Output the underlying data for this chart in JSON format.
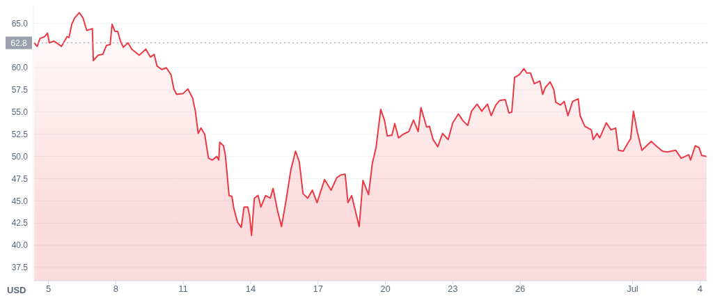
{
  "chart_data": {
    "type": "area",
    "ylabel": "USD",
    "x": [
      "--06-04T09:00",
      "--06-04T12:00",
      "--06-04T15:00",
      "--06-04T20:00",
      "--06-04T23:00",
      "--06-05T01:00",
      "--06-05T06:00",
      "--06-05T14:00",
      "--06-05T20:00",
      "--06-05T22:00",
      "--06-06T01:00",
      "--06-06T04:00",
      "--06-06T09:00",
      "--06-06T13:00",
      "--06-06T17:00",
      "--06-06T23:00",
      "--06-07T00:00",
      "--06-07T05:00",
      "--06-07T10:00",
      "--06-07T14:00",
      "--06-07T18:00",
      "--06-07T20:00",
      "--06-07T23:00",
      "--06-08T02:00",
      "--06-08T05:00",
      "--06-08T08:00",
      "--06-08T13:00",
      "--06-08T17:00",
      "--06-09T01:00",
      "--06-09T08:00",
      "--06-09T13:00",
      "--06-09T17:00",
      "--06-09T20:00",
      "--06-10T01:00",
      "--06-10T06:00",
      "--06-10T11:00",
      "--06-10T14:00",
      "--06-10T17:00",
      "--06-11T00:00",
      "--06-11T05:00",
      "--06-11T10:00",
      "--06-11T13:00",
      "--06-11T16:00",
      "--06-11T19:00",
      "--06-11T23:00",
      "--06-12T03:00",
      "--06-12T07:00",
      "--06-12T12:00",
      "--06-12T14:00",
      "--06-12T15:00",
      "--06-12T19:00",
      "--06-12T21:00",
      "--06-13T01:00",
      "--06-13T04:00",
      "--06-13T06:00",
      "--06-13T10:00",
      "--06-13T14:00",
      "--06-13T17:00",
      "--06-13T21:00",
      "--06-13T23:00",
      "--06-14T01:00",
      "--06-14T04:00",
      "--06-14T08:00",
      "--06-14T11:00",
      "--06-14T16:00",
      "--06-14T21:00",
      "--06-15T00:00",
      "--06-15T05:00",
      "--06-15T09:00",
      "--06-15T14:00",
      "--06-15T19:00",
      "--06-16T00:00",
      "--06-16T04:00",
      "--06-16T08:00",
      "--06-16T13:00",
      "--06-16T18:00",
      "--06-16T23:00",
      "--06-17T07:00",
      "--06-17T14:00",
      "--06-17T20:00",
      "--06-18T00:00",
      "--06-18T05:00",
      "--06-18T08:00",
      "--06-18T12:00",
      "--06-18T20:00",
      "--06-19T00:00",
      "--06-19T06:00",
      "--06-19T10:00",
      "--06-19T14:00",
      "--06-19T19:00",
      "--06-19T23:00",
      "--06-20T02:00",
      "--06-20T07:00",
      "--06-20T10:00",
      "--06-20T14:00",
      "--06-20T19:00",
      "--06-21T01:00",
      "--06-21T06:00",
      "--06-21T11:00",
      "--06-21T14:00",
      "--06-21T20:00",
      "--06-21T23:00",
      "--06-22T03:00",
      "--06-22T08:00",
      "--06-22T13:00",
      "--06-22T19:00",
      "--06-23T00:00",
      "--06-23T06:00",
      "--06-23T11:00",
      "--06-23T16:00",
      "--06-23T20:00",
      "--06-24T02:00",
      "--06-24T07:00",
      "--06-24T13:00",
      "--06-24T17:00",
      "--06-24T22:00",
      "--06-25T02:00",
      "--06-25T08:00",
      "--06-25T12:00",
      "--06-25T15:00",
      "--06-25T18:00",
      "--06-25T23:00",
      "--06-26T04:00",
      "--06-26T07:00",
      "--06-26T11:00",
      "--06-26T15:00",
      "--06-26T21:00",
      "--06-27T00:00",
      "--06-27T03:00",
      "--06-27T08:00",
      "--06-27T12:00",
      "--06-27T14:00",
      "--06-27T19:00",
      "--06-27T23:00",
      "--06-28T03:00",
      "--06-28T08:00",
      "--06-28T14:00",
      "--06-28T16:00",
      "--06-28T21:00",
      "--06-29T04:00",
      "--06-29T06:00",
      "--06-29T10:00",
      "--06-29T13:00",
      "--06-29T20:00",
      "--06-30T01:00",
      "--06-30T06:00",
      "--06-30T09:00",
      "--06-30T14:00",
      "--06-30T19:00",
      "--06-30T22:00",
      "--07-01T01:00",
      "--07-01T05:00",
      "--07-01T10:00",
      "--07-01T15:00",
      "--07-01T20:00",
      "--07-02T01:00",
      "--07-02T08:00",
      "--07-02T13:00",
      "--07-02T22:00",
      "--07-03T04:00",
      "--07-03T12:00",
      "--07-03T14:00",
      "--07-03T19:00",
      "--07-03T23:00",
      "--07-04T02:00",
      "--07-04T07:00"
    ],
    "series": [
      {
        "color": "#ea3943",
        "values": [
          62.8,
          62.4,
          63.3,
          63.5,
          63.9,
          62.8,
          63.0,
          62.4,
          63.5,
          63.4,
          64.9,
          65.6,
          66.2,
          65.6,
          64.2,
          64.4,
          60.8,
          61.4,
          61.5,
          62.5,
          62.6,
          64.9,
          64.1,
          64.1,
          63.0,
          62.3,
          62.8,
          62.1,
          61.4,
          62.1,
          61.2,
          61.5,
          60.2,
          59.8,
          60.0,
          59.2,
          57.6,
          57.0,
          57.1,
          57.6,
          56.6,
          55.1,
          52.6,
          53.2,
          52.5,
          49.8,
          49.6,
          50.0,
          49.6,
          51.6,
          51.2,
          50.2,
          45.6,
          45.5,
          44.2,
          42.6,
          42.0,
          44.3,
          44.3,
          43.3,
          41.1,
          45.3,
          45.6,
          44.3,
          45.6,
          45.3,
          46.4,
          43.8,
          42.1,
          45.1,
          48.5,
          50.6,
          49.4,
          45.8,
          45.3,
          46.2,
          44.8,
          47.4,
          46.2,
          47.6,
          47.9,
          48.0,
          44.8,
          45.6,
          42.1,
          47.3,
          45.7,
          49.2,
          51.0,
          55.3,
          54.1,
          52.3,
          52.4,
          53.7,
          52.1,
          52.5,
          52.8,
          54.1,
          52.8,
          55.5,
          53.3,
          53.4,
          51.9,
          51.1,
          52.6,
          51.9,
          53.8,
          54.8,
          54.0,
          53.5,
          55.1,
          55.9,
          55.1,
          55.9,
          54.6,
          55.8,
          56.3,
          56.4,
          54.9,
          55.0,
          58.9,
          59.2,
          59.9,
          59.4,
          59.4,
          58.2,
          58.5,
          57.0,
          57.8,
          58.4,
          57.5,
          56.1,
          55.8,
          56.2,
          54.6,
          56.2,
          56.5,
          54.6,
          53.4,
          53.0,
          51.9,
          52.6,
          52.1,
          53.8,
          53.0,
          53.2,
          50.7,
          50.6,
          51.5,
          52.0,
          55.1,
          52.8,
          50.7,
          51.2,
          51.7,
          51.2,
          50.6,
          50.5,
          50.7,
          49.8,
          50.2,
          49.6,
          51.2,
          51.0,
          50.1,
          50.0
        ]
      }
    ],
    "xlim": [
      "--06-04T08:00",
      "--07-04T08:00"
    ],
    "xticks": [
      {
        "value": "--06-05",
        "label": "5"
      },
      {
        "value": "--06-08",
        "label": "8"
      },
      {
        "value": "--06-11",
        "label": "11"
      },
      {
        "value": "--06-14",
        "label": "14"
      },
      {
        "value": "--06-17",
        "label": "17"
      },
      {
        "value": "--06-20",
        "label": "20"
      },
      {
        "value": "--06-23",
        "label": "23"
      },
      {
        "value": "--06-26",
        "label": "26"
      },
      {
        "value": "--07-01",
        "label": "Jul"
      },
      {
        "value": "--07-04",
        "label": "4"
      }
    ],
    "ylim": [
      36,
      67
    ],
    "yticks": [
      {
        "value": 37.5,
        "label": "37.5"
      },
      {
        "value": 40,
        "label": "40.0"
      },
      {
        "value": 42.5,
        "label": "42.5"
      },
      {
        "value": 45,
        "label": "45.0"
      },
      {
        "value": 47.5,
        "label": "47.5"
      },
      {
        "value": 50,
        "label": "50.0"
      },
      {
        "value": 52.5,
        "label": "52.5"
      },
      {
        "value": 55,
        "label": "55.0"
      },
      {
        "value": 57.5,
        "label": "57.5"
      },
      {
        "value": 60,
        "label": "60.0"
      },
      {
        "value": 65,
        "label": "65.0"
      }
    ],
    "ref_lines": [
      {
        "axis": "y",
        "value": 62.8,
        "label": "62.8",
        "color": "#9aa0ad",
        "line_style": "dotted"
      }
    ],
    "grid": "y",
    "marker": "none",
    "line_style": "solid"
  }
}
